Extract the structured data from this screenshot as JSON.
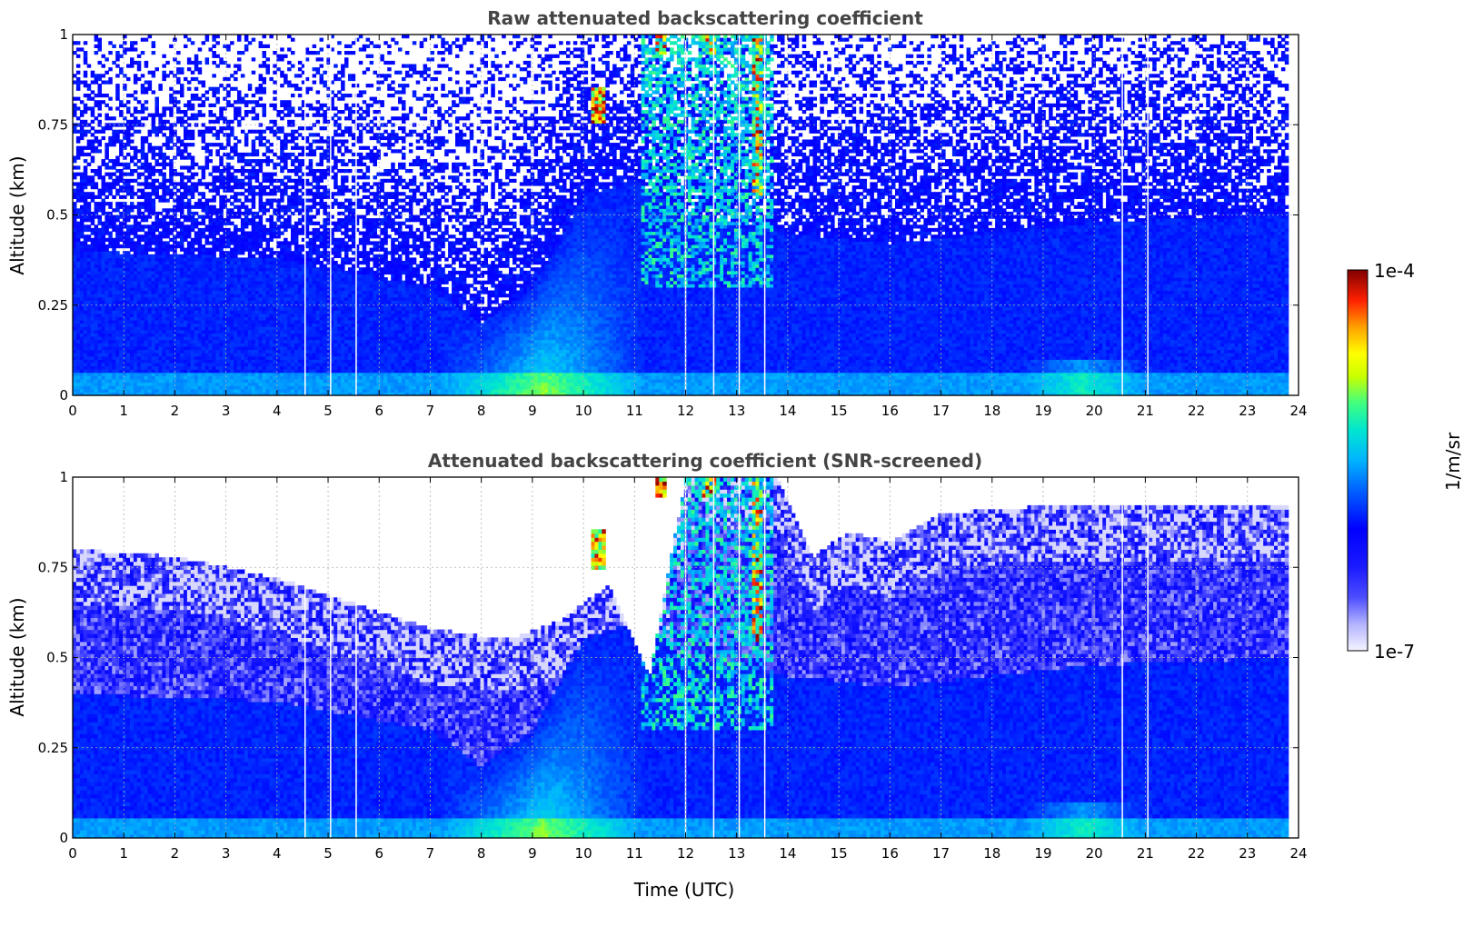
{
  "chart_data": [
    {
      "type": "heatmap",
      "title": "Raw attenuated backscattering coefficient",
      "xlabel": "",
      "ylabel": "Altitude (km)",
      "xlim": [
        0,
        24
      ],
      "ylim": [
        0,
        1
      ],
      "x_ticks": [
        "0",
        "1",
        "2",
        "3",
        "4",
        "5",
        "6",
        "7",
        "8",
        "9",
        "10",
        "11",
        "12",
        "13",
        "14",
        "15",
        "16",
        "17",
        "18",
        "19",
        "20",
        "21",
        "22",
        "23",
        "24"
      ],
      "y_ticks": [
        "0",
        "0.25",
        "0.5",
        "0.75",
        "1"
      ],
      "grid": true,
      "data_time_range_utc": [
        0,
        23.8
      ],
      "boundary_layer_top_km": [
        [
          0,
          0.4
        ],
        [
          4,
          0.38
        ],
        [
          7,
          0.3
        ],
        [
          8,
          0.2
        ],
        [
          9,
          0.3
        ],
        [
          10,
          0.55
        ],
        [
          11,
          0.6
        ],
        [
          12,
          0.5
        ],
        [
          14,
          0.45
        ],
        [
          16,
          0.42
        ],
        [
          20,
          0.48
        ],
        [
          23.8,
          0.5
        ]
      ],
      "cloud_events": [
        {
          "time_utc": 10.3,
          "altitude_km": [
            0.75,
            0.85
          ]
        },
        {
          "time_utc": 11.5,
          "altitude_km": [
            0.95,
            1.0
          ]
        },
        {
          "time_utc": 12.45,
          "altitude_km": [
            0.95,
            1.0
          ]
        },
        {
          "time_utc": 13.4,
          "altitude_km": [
            0.55,
            1.0
          ]
        }
      ],
      "gaps_utc": [
        4.55,
        5.05,
        5.55,
        12.0,
        12.55,
        13.05,
        13.55,
        20.55,
        21.05
      ]
    },
    {
      "type": "heatmap",
      "title": "Attenuated backscattering coefficient (SNR-screened)",
      "xlabel": "Time (UTC)",
      "ylabel": "Altitude (km)",
      "xlim": [
        0,
        24
      ],
      "ylim": [
        0,
        1
      ],
      "x_ticks": [
        "0",
        "1",
        "2",
        "3",
        "4",
        "5",
        "6",
        "7",
        "8",
        "9",
        "10",
        "11",
        "12",
        "13",
        "14",
        "15",
        "16",
        "17",
        "18",
        "19",
        "20",
        "21",
        "22",
        "23",
        "24"
      ],
      "y_ticks": [
        "0",
        "0.25",
        "0.5",
        "0.75",
        "1"
      ],
      "grid": true,
      "data_time_range_utc": [
        0,
        23.8
      ],
      "screened_top_km": [
        [
          0,
          0.8
        ],
        [
          2,
          0.78
        ],
        [
          4,
          0.72
        ],
        [
          5.5,
          0.65
        ],
        [
          7,
          0.58
        ],
        [
          8.5,
          0.55
        ],
        [
          9.5,
          0.6
        ],
        [
          10.5,
          0.7
        ],
        [
          11.3,
          0.45
        ],
        [
          12,
          1.0
        ],
        [
          13.8,
          1.0
        ],
        [
          14.5,
          0.78
        ],
        [
          15.2,
          0.85
        ],
        [
          16,
          0.82
        ],
        [
          17,
          0.9
        ],
        [
          19,
          0.92
        ],
        [
          21,
          0.92
        ],
        [
          23.8,
          0.92
        ]
      ],
      "gaps_utc": [
        4.55,
        5.05,
        5.55,
        12.0,
        12.55,
        13.05,
        13.55,
        20.55,
        21.05
      ]
    }
  ],
  "colorbar": {
    "label": "1/m/sr",
    "max_label": "1e-4",
    "min_label": "1e-7",
    "scale": "log",
    "colormap": [
      "#ffffff",
      "#b3b3ff",
      "#4d4dff",
      "#0000ff",
      "#0050ff",
      "#00a0ff",
      "#00e6e6",
      "#40ff80",
      "#c0ff00",
      "#ffff00",
      "#ffa000",
      "#ff3000",
      "#d00000",
      "#800000"
    ]
  }
}
